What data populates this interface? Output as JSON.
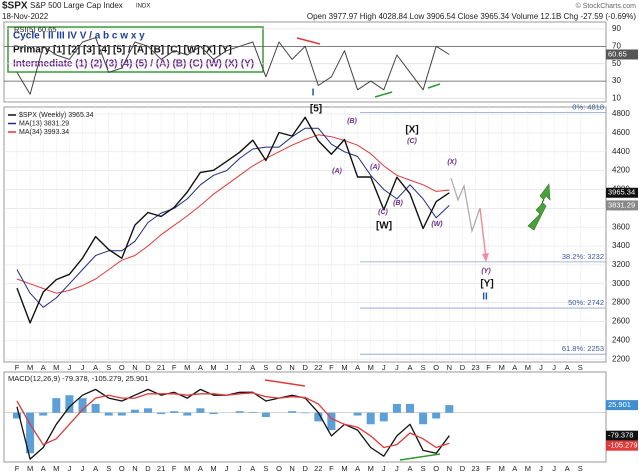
{
  "header": {
    "symbol": "$SPX",
    "name": "S&P 500 Large Cap Index",
    "exchange": "INDX",
    "date": "18-Nov-2022",
    "quote": "Open 3977.97 High 4028.84 Low 3906.54 Close 3965.34 Volume 12.1B Chg -27.59 (-0.69%)",
    "credit": "© StockCharts.com"
  },
  "wave_legend": [
    {
      "text": "Cycle I II III IV V / a b c w x y",
      "color": "#1f3f9a"
    },
    {
      "text": "Primary [1] [2] [3] [4] [5] / [A] [B] [C] [W] [X] [Y]",
      "color": "#111111"
    },
    {
      "text": "Intermediate (1) (2) (3) (4) (5) / (A) (B) (C) (W) (X) (Y)",
      "color": "#6b2a8a"
    }
  ],
  "wave_labels": [
    {
      "text": "I",
      "color": "#1f4fb0"
    },
    {
      "text": "[5]",
      "color": "#111111"
    },
    {
      "text": "(B)",
      "color": "#6b2a8a"
    },
    {
      "text": "(A)",
      "color": "#6b2a8a"
    },
    {
      "text": "(A)",
      "color": "#6b2a8a"
    },
    {
      "text": "(B)",
      "color": "#6b2a8a"
    },
    {
      "text": "(C)",
      "color": "#6b2a8a"
    },
    {
      "text": "[W]",
      "color": "#111111"
    },
    {
      "text": "[X]",
      "color": "#111111"
    },
    {
      "text": "(C)",
      "color": "#6b2a8a"
    },
    {
      "text": "(X)",
      "color": "#6b2a8a"
    },
    {
      "text": "(W)",
      "color": "#6b2a8a"
    },
    {
      "text": "(Y)",
      "color": "#6b2a8a"
    },
    {
      "text": "[Y]",
      "color": "#111111"
    },
    {
      "text": "II",
      "color": "#1f4fb0"
    }
  ],
  "chart_data": [
    {
      "type": "line",
      "title": "RSI(5) 60.65",
      "color": "#444444",
      "values": [
        40,
        15,
        70,
        60,
        55,
        75,
        80,
        40,
        45,
        75,
        70,
        55,
        65,
        60,
        70,
        55,
        65,
        70,
        75,
        35,
        75,
        55,
        70,
        25,
        35,
        65,
        20,
        30,
        20,
        60,
        40,
        20,
        70,
        60.65,
        null,
        null,
        null,
        null,
        null,
        null,
        null,
        null,
        null,
        null
      ],
      "last_value_label": "60.65",
      "ylim": [
        6,
        98
      ],
      "yticks": [
        10,
        30,
        50,
        70,
        90
      ]
    },
    {
      "type": "line",
      "categories": [
        "F",
        "M",
        "A",
        "M",
        "J",
        "J",
        "A",
        "S",
        "O",
        "N",
        "D",
        "21",
        "F",
        "M",
        "A",
        "M",
        "J",
        "J",
        "A",
        "S",
        "O",
        "N",
        "D",
        "22",
        "F",
        "M",
        "A",
        "M",
        "J",
        "J",
        "A",
        "S",
        "O",
        "N",
        "D",
        "23",
        "F",
        "M",
        "A",
        "M",
        "J",
        "J",
        "A",
        "S"
      ],
      "series": [
        {
          "name": "$SPX (Weekly) 3965.34",
          "color": "#111111",
          "badge": "3965.34",
          "values": [
            2954,
            2585,
            2912,
            3044,
            3100,
            3271,
            3500,
            3363,
            3270,
            3622,
            3756,
            3714,
            3811,
            3973,
            4181,
            4204,
            4298,
            4395,
            4523,
            4308,
            4605,
            4567,
            4766,
            4516,
            4374,
            4530,
            4132,
            4132,
            3785,
            4130,
            3955,
            3586,
            3872,
            3965.34,
            null,
            null,
            null,
            null,
            null,
            null,
            null,
            null,
            null,
            null
          ]
        },
        {
          "name": "MA(13) 3831.29",
          "color": "#1f2f80",
          "badge": "3831.29",
          "values": [
            3150,
            2900,
            2750,
            2850,
            3000,
            3150,
            3300,
            3350,
            3350,
            3450,
            3650,
            3750,
            3800,
            3900,
            4050,
            4150,
            4200,
            4330,
            4430,
            4450,
            4450,
            4560,
            4650,
            4650,
            4480,
            4400,
            4350,
            4150,
            4000,
            3900,
            4050,
            3900,
            3700,
            3831.29,
            null,
            null,
            null,
            null,
            null,
            null,
            null,
            null,
            null,
            null
          ]
        },
        {
          "name": "MA(34) 3993.34",
          "color": "#e03a3a",
          "values": [
            3050,
            3000,
            2950,
            2900,
            2930,
            2980,
            3050,
            3150,
            3250,
            3300,
            3400,
            3520,
            3620,
            3720,
            3830,
            3950,
            4050,
            4150,
            4250,
            4330,
            4400,
            4470,
            4530,
            4580,
            4560,
            4520,
            4470,
            4380,
            4250,
            4150,
            4100,
            4050,
            3980,
            3993.34,
            null,
            null,
            null,
            null,
            null,
            null,
            null,
            null,
            null,
            null
          ]
        }
      ],
      "ylim": [
        2170,
        4875
      ],
      "yticks": [
        2200,
        2400,
        2600,
        2800,
        3000,
        3200,
        3400,
        3600,
        3800,
        4000,
        4200,
        4400,
        4600,
        4800
      ],
      "grid": true,
      "levels": [
        {
          "value": 4818,
          "label": "0%: 4818"
        },
        {
          "value": 3232,
          "label": "38.2%: 3232"
        },
        {
          "value": 2742,
          "label": "50%: 2742"
        },
        {
          "value": 2253,
          "label": "61.8%: 2253"
        }
      ]
    },
    {
      "type": "macd",
      "title": "MACD(12,26,9) -79.378, -105.279, 25.901",
      "categories": [
        "F",
        "M",
        "A",
        "M",
        "J",
        "J",
        "A",
        "S",
        "O",
        "N",
        "D",
        "21",
        "F",
        "M",
        "A",
        "M",
        "J",
        "J",
        "A",
        "S",
        "O",
        "N",
        "D",
        "22",
        "F",
        "M",
        "A",
        "M",
        "J",
        "J",
        "A",
        "S",
        "O",
        "N",
        "D",
        "23",
        "F",
        "M",
        "A",
        "M",
        "J",
        "J",
        "A",
        "S"
      ],
      "series": [
        {
          "kind": "histogram",
          "color": "#3f8fd0",
          "badge": "25.901",
          "values": [
            -20,
            -140,
            -10,
            50,
            60,
            50,
            30,
            -10,
            -10,
            10,
            15,
            -5,
            5,
            -10,
            15,
            -5,
            0,
            5,
            2,
            -15,
            0,
            5,
            -2,
            -30,
            -60,
            0,
            -10,
            -40,
            -30,
            30,
            30,
            -40,
            -20,
            25.901,
            null,
            null,
            null,
            null,
            null,
            null,
            null,
            null,
            null,
            null
          ]
        },
        {
          "kind": "line",
          "color": "#111111",
          "badge": "-79.378",
          "values": [
            20,
            -160,
            -120,
            -40,
            20,
            60,
            80,
            50,
            40,
            60,
            80,
            60,
            70,
            50,
            80,
            60,
            60,
            70,
            70,
            40,
            50,
            60,
            50,
            0,
            -80,
            -40,
            -60,
            -120,
            -150,
            -80,
            -40,
            -130,
            -140,
            -79.378,
            null,
            null,
            null,
            null,
            null,
            null,
            null,
            null,
            null,
            null
          ]
        },
        {
          "kind": "line",
          "color": "#e03a3a",
          "badge": "-105.279",
          "values": [
            40,
            -40,
            -110,
            -90,
            -40,
            10,
            50,
            60,
            50,
            50,
            65,
            65,
            65,
            60,
            65,
            65,
            60,
            65,
            68,
            55,
            50,
            55,
            52,
            30,
            -20,
            -40,
            -50,
            -80,
            -120,
            -110,
            -70,
            -90,
            -120,
            -105.279,
            null,
            null,
            null,
            null,
            null,
            null,
            null,
            null,
            null,
            null
          ]
        }
      ],
      "ylim": [
        -170,
        140
      ]
    }
  ]
}
